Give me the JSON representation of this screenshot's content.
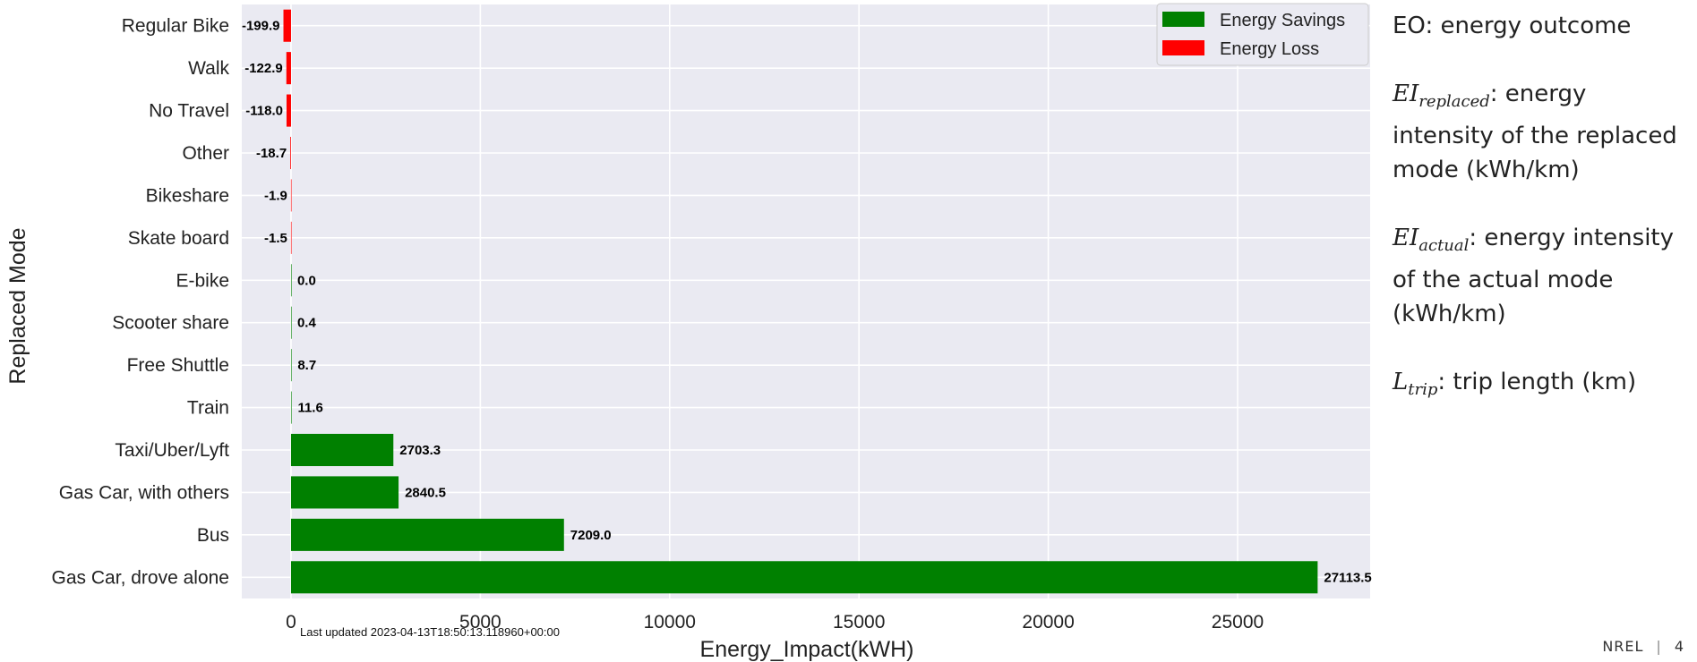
{
  "chart_data": {
    "type": "bar",
    "orientation": "horizontal",
    "ylabel": "Replaced Mode",
    "xlabel": "Energy_Impact(kWH)",
    "xlim": [
      -1300,
      28500
    ],
    "x_ticks": [
      0,
      5000,
      10000,
      15000,
      20000,
      25000
    ],
    "grid": true,
    "legend_position": "top-right",
    "legend": [
      {
        "label": "Energy Savings",
        "color": "#008000"
      },
      {
        "label": "Energy Loss",
        "color": "#ff0000"
      }
    ],
    "categories": [
      "Regular Bike",
      "Walk",
      "No Travel",
      "Other",
      "Bikeshare",
      "Skate board",
      "E-bike",
      "Scooter share",
      "Free Shuttle",
      "Train",
      "Taxi/Uber/Lyft",
      "Gas Car, with others",
      "Bus",
      "Gas Car, drove alone"
    ],
    "values": [
      -199.9,
      -122.9,
      -118.0,
      -18.7,
      -1.9,
      -1.5,
      0.0,
      0.4,
      8.7,
      11.6,
      2703.3,
      2840.5,
      7209.0,
      27113.5
    ],
    "value_labels": [
      "-199.9",
      "-122.9",
      "-118.0",
      "-18.7",
      "-1.9",
      "-1.5",
      "0.0",
      "0.4",
      "8.7",
      "11.6",
      "2703.3",
      "2840.5",
      "7209.0",
      "27113.5"
    ],
    "annotation": "Last updated 2023-04-13T18:50:13.118960+00:00"
  },
  "side_notes": {
    "eo": {
      "symbol": "EO",
      "text": ": energy outcome"
    },
    "ei_replaced": {
      "symbol": "EI",
      "sub": "replaced",
      "text": ": energy intensity of the replaced mode (kWh/km)"
    },
    "ei_actual": {
      "symbol": "EI",
      "sub": "actual",
      "text": ": energy intensity of the actual mode (kWh/km)"
    },
    "l_trip": {
      "symbol": "L",
      "sub": "trip",
      "text": ": trip length (km)"
    }
  },
  "footer": {
    "org": "NREL",
    "page": "4"
  },
  "colors": {
    "plot_bg": "#eaeaf2",
    "savings": "#008000",
    "loss": "#ff0000"
  }
}
